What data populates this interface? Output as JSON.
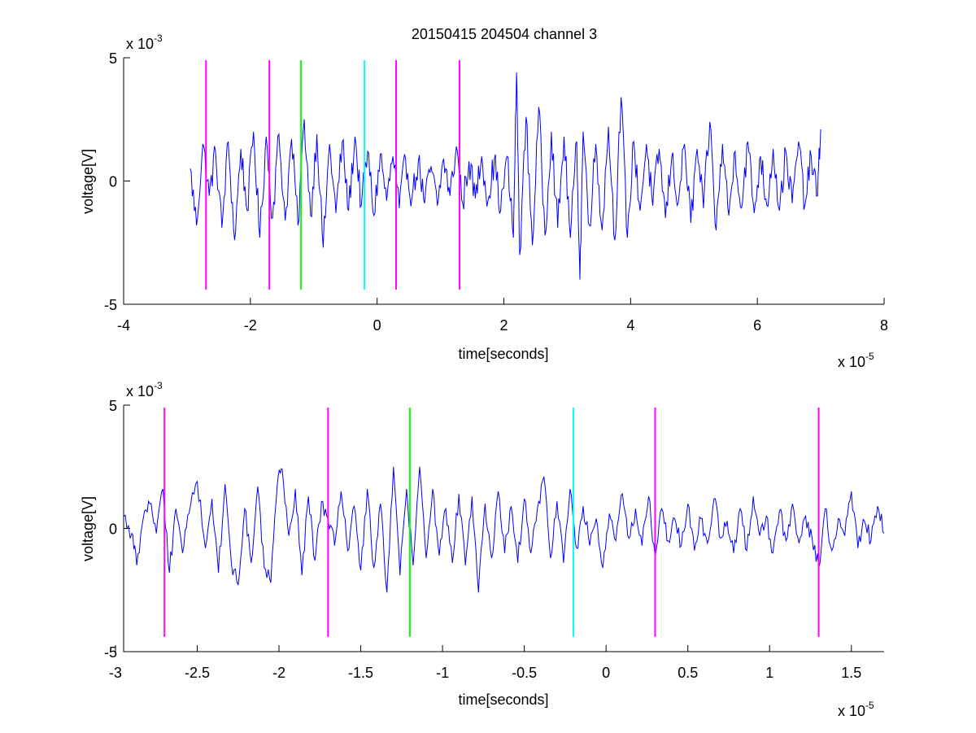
{
  "figure": {
    "title": "20150415 204504 channel 3"
  },
  "chart_data": [
    {
      "type": "line",
      "title": "20150415 204504 channel 3",
      "xlabel": "time[seconds]",
      "ylabel": "voltage[V]",
      "x_exponent_label": "x 10",
      "x_exponent": "-5",
      "y_exponent_label": "x 10",
      "y_exponent": "-3",
      "xlim": [
        -4,
        8
      ],
      "ylim": [
        -5,
        5
      ],
      "x_ticks": [
        -4,
        -2,
        0,
        2,
        4,
        6,
        8
      ],
      "x_tick_labels": [
        "-4",
        "-2",
        "0",
        "2",
        "4",
        "6",
        "8"
      ],
      "y_ticks": [
        5,
        0,
        -5
      ],
      "y_tick_labels": [
        "5",
        "0",
        "-5"
      ],
      "grid": false,
      "series": [
        {
          "color": "#0000ff",
          "x_range": [
            -2.95,
            7.0
          ],
          "points": [
            [
              -2.95,
              0.5
            ],
            [
              -2.85,
              -1.8
            ],
            [
              -2.75,
              1.5
            ],
            [
              -2.65,
              -0.6
            ],
            [
              -2.55,
              1.2
            ],
            [
              -2.45,
              -1.9
            ],
            [
              -2.35,
              1.6
            ],
            [
              -2.25,
              -2.4
            ],
            [
              -2.15,
              1.3
            ],
            [
              -2.05,
              -1.2
            ],
            [
              -1.95,
              2.0
            ],
            [
              -1.85,
              -2.3
            ],
            [
              -1.75,
              1.8
            ],
            [
              -1.65,
              -1.5
            ],
            [
              -1.55,
              1.9
            ],
            [
              -1.45,
              -1.6
            ],
            [
              -1.35,
              1.7
            ],
            [
              -1.25,
              -1.8
            ],
            [
              -1.15,
              2.5
            ],
            [
              -1.05,
              -1.4
            ],
            [
              -0.95,
              1.9
            ],
            [
              -0.85,
              -2.7
            ],
            [
              -0.75,
              1.5
            ],
            [
              -0.65,
              -1.3
            ],
            [
              -0.55,
              1.6
            ],
            [
              -0.45,
              -1.2
            ],
            [
              -0.35,
              1.8
            ],
            [
              -0.25,
              -1.0
            ],
            [
              -0.15,
              1.2
            ],
            [
              -0.05,
              -1.4
            ],
            [
              0.05,
              1.1
            ],
            [
              0.15,
              -0.8
            ],
            [
              0.25,
              1.0
            ],
            [
              0.35,
              -1.1
            ],
            [
              0.45,
              0.9
            ],
            [
              0.55,
              -0.7
            ],
            [
              0.65,
              0.8
            ],
            [
              0.75,
              -0.9
            ],
            [
              0.85,
              0.6
            ],
            [
              0.95,
              -1.0
            ],
            [
              1.05,
              0.9
            ],
            [
              1.15,
              -0.6
            ],
            [
              1.25,
              1.4
            ],
            [
              1.35,
              -0.9
            ],
            [
              1.45,
              0.8
            ],
            [
              1.55,
              -0.7
            ],
            [
              1.65,
              1.0
            ],
            [
              1.75,
              -0.8
            ],
            [
              1.85,
              0.9
            ],
            [
              1.95,
              -1.2
            ],
            [
              2.05,
              1.0
            ],
            [
              2.15,
              -2.3
            ],
            [
              2.2,
              4.4
            ],
            [
              2.25,
              -3.0
            ],
            [
              2.35,
              2.6
            ],
            [
              2.45,
              -2.6
            ],
            [
              2.55,
              3.0
            ],
            [
              2.65,
              -2.2
            ],
            [
              2.75,
              2.0
            ],
            [
              2.85,
              -1.9
            ],
            [
              2.95,
              1.8
            ],
            [
              3.05,
              -2.3
            ],
            [
              3.15,
              1.6
            ],
            [
              3.2,
              -4.0
            ],
            [
              3.25,
              2.0
            ],
            [
              3.35,
              -1.8
            ],
            [
              3.45,
              1.5
            ],
            [
              3.55,
              -2.0
            ],
            [
              3.65,
              2.2
            ],
            [
              3.75,
              -2.4
            ],
            [
              3.85,
              3.4
            ],
            [
              3.95,
              -2.3
            ],
            [
              4.05,
              1.6
            ],
            [
              4.15,
              -1.2
            ],
            [
              4.25,
              1.5
            ],
            [
              4.35,
              -1.0
            ],
            [
              4.45,
              1.3
            ],
            [
              4.55,
              -1.5
            ],
            [
              4.65,
              1.0
            ],
            [
              4.75,
              -0.9
            ],
            [
              4.85,
              1.5
            ],
            [
              4.95,
              -1.7
            ],
            [
              5.05,
              1.3
            ],
            [
              5.15,
              -1.1
            ],
            [
              5.25,
              2.4
            ],
            [
              5.35,
              -2.0
            ],
            [
              5.45,
              1.5
            ],
            [
              5.55,
              -1.4
            ],
            [
              5.65,
              1.2
            ],
            [
              5.75,
              -1.1
            ],
            [
              5.85,
              1.6
            ],
            [
              5.95,
              -1.3
            ],
            [
              6.05,
              1.0
            ],
            [
              6.15,
              -1.0
            ],
            [
              6.25,
              1.3
            ],
            [
              6.35,
              -1.2
            ],
            [
              6.45,
              1.2
            ],
            [
              6.55,
              -0.9
            ],
            [
              6.65,
              1.6
            ],
            [
              6.75,
              -1.0
            ],
            [
              6.85,
              1.0
            ],
            [
              6.95,
              -0.6
            ],
            [
              7.0,
              2.1
            ]
          ]
        }
      ],
      "markers": [
        {
          "x": -2.7,
          "color": "#ff00ff"
        },
        {
          "x": -1.7,
          "color": "#ff00ff"
        },
        {
          "x": -1.2,
          "color": "#00ff00"
        },
        {
          "x": -0.2,
          "color": "#00ffff"
        },
        {
          "x": 0.3,
          "color": "#ff00ff"
        },
        {
          "x": 1.3,
          "color": "#ff00ff"
        }
      ],
      "marker_ylim": [
        -4.4,
        4.9
      ]
    },
    {
      "type": "line",
      "xlabel": "time[seconds]",
      "ylabel": "voltage[V]",
      "x_exponent_label": "x 10",
      "x_exponent": "-5",
      "y_exponent_label": "x 10",
      "y_exponent": "-3",
      "xlim": [
        -2.95,
        1.7
      ],
      "ylim": [
        -5,
        5
      ],
      "x_ticks": [
        -3,
        -2.5,
        -2,
        -1.5,
        -1,
        -0.5,
        0,
        0.5,
        1,
        1.5
      ],
      "x_tick_labels": [
        "-3",
        "-2.5",
        "-2",
        "-1.5",
        "-1",
        "-0.5",
        "0",
        "0.5",
        "1",
        "1.5"
      ],
      "y_ticks": [
        5,
        0,
        -5
      ],
      "y_tick_labels": [
        "5",
        "0",
        "-5"
      ],
      "grid": false,
      "series": [
        {
          "color": "#0000ff",
          "x_range": [
            -2.95,
            1.7
          ],
          "points": [
            [
              -2.95,
              0.5
            ],
            [
              -2.9,
              -0.2
            ],
            [
              -2.87,
              -1.5
            ],
            [
              -2.83,
              0.4
            ],
            [
              -2.79,
              1.0
            ],
            [
              -2.75,
              -0.2
            ],
            [
              -2.71,
              1.6
            ],
            [
              -2.67,
              -1.8
            ],
            [
              -2.63,
              0.8
            ],
            [
              -2.59,
              -1.0
            ],
            [
              -2.55,
              0.6
            ],
            [
              -2.5,
              1.9
            ],
            [
              -2.45,
              -0.8
            ],
            [
              -2.41,
              1.2
            ],
            [
              -2.37,
              -1.8
            ],
            [
              -2.33,
              1.8
            ],
            [
              -2.29,
              -1.5
            ],
            [
              -2.25,
              -2.3
            ],
            [
              -2.21,
              0.8
            ],
            [
              -2.17,
              -1.4
            ],
            [
              -2.13,
              1.7
            ],
            [
              -2.09,
              -1.6
            ],
            [
              -2.05,
              -2.2
            ],
            [
              -2.01,
              1.8
            ],
            [
              -1.98,
              2.4
            ],
            [
              -1.94,
              -0.3
            ],
            [
              -1.9,
              1.6
            ],
            [
              -1.86,
              -1.9
            ],
            [
              -1.82,
              1.3
            ],
            [
              -1.78,
              -1.3
            ],
            [
              -1.74,
              1.1
            ],
            [
              -1.7,
              0.4
            ],
            [
              -1.66,
              -0.7
            ],
            [
              -1.62,
              1.5
            ],
            [
              -1.58,
              -0.9
            ],
            [
              -1.54,
              0.9
            ],
            [
              -1.5,
              -1.7
            ],
            [
              -1.46,
              1.6
            ],
            [
              -1.42,
              -1.6
            ],
            [
              -1.38,
              1.0
            ],
            [
              -1.34,
              -2.6
            ],
            [
              -1.3,
              2.5
            ],
            [
              -1.26,
              -1.9
            ],
            [
              -1.22,
              1.6
            ],
            [
              -1.18,
              -1.5
            ],
            [
              -1.14,
              2.5
            ],
            [
              -1.1,
              -1.2
            ],
            [
              -1.06,
              1.6
            ],
            [
              -1.02,
              -1.1
            ],
            [
              -0.98,
              0.8
            ],
            [
              -0.94,
              -1.4
            ],
            [
              -0.9,
              1.4
            ],
            [
              -0.86,
              -1.5
            ],
            [
              -0.82,
              1.3
            ],
            [
              -0.78,
              -2.6
            ],
            [
              -0.74,
              1.0
            ],
            [
              -0.7,
              -1.2
            ],
            [
              -0.66,
              1.5
            ],
            [
              -0.62,
              -1.0
            ],
            [
              -0.58,
              0.9
            ],
            [
              -0.54,
              -1.4
            ],
            [
              -0.5,
              1.2
            ],
            [
              -0.46,
              -1.0
            ],
            [
              -0.42,
              0.8
            ],
            [
              -0.38,
              2.1
            ],
            [
              -0.34,
              -1.2
            ],
            [
              -0.3,
              1.1
            ],
            [
              -0.26,
              -1.4
            ],
            [
              -0.22,
              1.6
            ],
            [
              -0.18,
              -0.8
            ],
            [
              -0.14,
              0.9
            ],
            [
              -0.1,
              -0.7
            ],
            [
              -0.06,
              0.4
            ],
            [
              -0.02,
              -1.6
            ],
            [
              0.02,
              0.6
            ],
            [
              0.06,
              -0.5
            ],
            [
              0.1,
              1.4
            ],
            [
              0.14,
              -0.4
            ],
            [
              0.18,
              0.8
            ],
            [
              0.22,
              -0.7
            ],
            [
              0.26,
              1.3
            ],
            [
              0.3,
              -1.2
            ],
            [
              0.34,
              0.8
            ],
            [
              0.38,
              -0.5
            ],
            [
              0.42,
              0.4
            ],
            [
              0.46,
              -0.7
            ],
            [
              0.5,
              1.0
            ],
            [
              0.54,
              -0.9
            ],
            [
              0.58,
              0.4
            ],
            [
              0.62,
              -0.6
            ],
            [
              0.66,
              1.2
            ],
            [
              0.7,
              -0.4
            ],
            [
              0.74,
              0.3
            ],
            [
              0.78,
              -1.0
            ],
            [
              0.82,
              0.8
            ],
            [
              0.86,
              -0.9
            ],
            [
              0.9,
              1.3
            ],
            [
              0.94,
              -0.3
            ],
            [
              0.98,
              0.5
            ],
            [
              1.02,
              -1.0
            ],
            [
              1.06,
              0.7
            ],
            [
              1.1,
              -0.5
            ],
            [
              1.14,
              1.0
            ],
            [
              1.18,
              -0.6
            ],
            [
              1.22,
              0.5
            ],
            [
              1.26,
              -0.4
            ],
            [
              1.3,
              -1.6
            ],
            [
              1.34,
              0.8
            ],
            [
              1.38,
              -0.9
            ],
            [
              1.42,
              0.4
            ],
            [
              1.46,
              -0.3
            ],
            [
              1.5,
              1.5
            ],
            [
              1.54,
              -0.8
            ],
            [
              1.58,
              0.3
            ],
            [
              1.62,
              -0.5
            ],
            [
              1.66,
              0.9
            ],
            [
              1.7,
              -0.2
            ]
          ]
        }
      ],
      "markers": [
        {
          "x": -2.7,
          "color": "#ff00ff"
        },
        {
          "x": -1.7,
          "color": "#ff00ff"
        },
        {
          "x": -1.2,
          "color": "#00ff00"
        },
        {
          "x": -0.2,
          "color": "#00ffff"
        },
        {
          "x": 0.3,
          "color": "#ff00ff"
        },
        {
          "x": 1.3,
          "color": "#ff00ff"
        }
      ],
      "marker_ylim": [
        -4.4,
        4.9
      ]
    }
  ]
}
